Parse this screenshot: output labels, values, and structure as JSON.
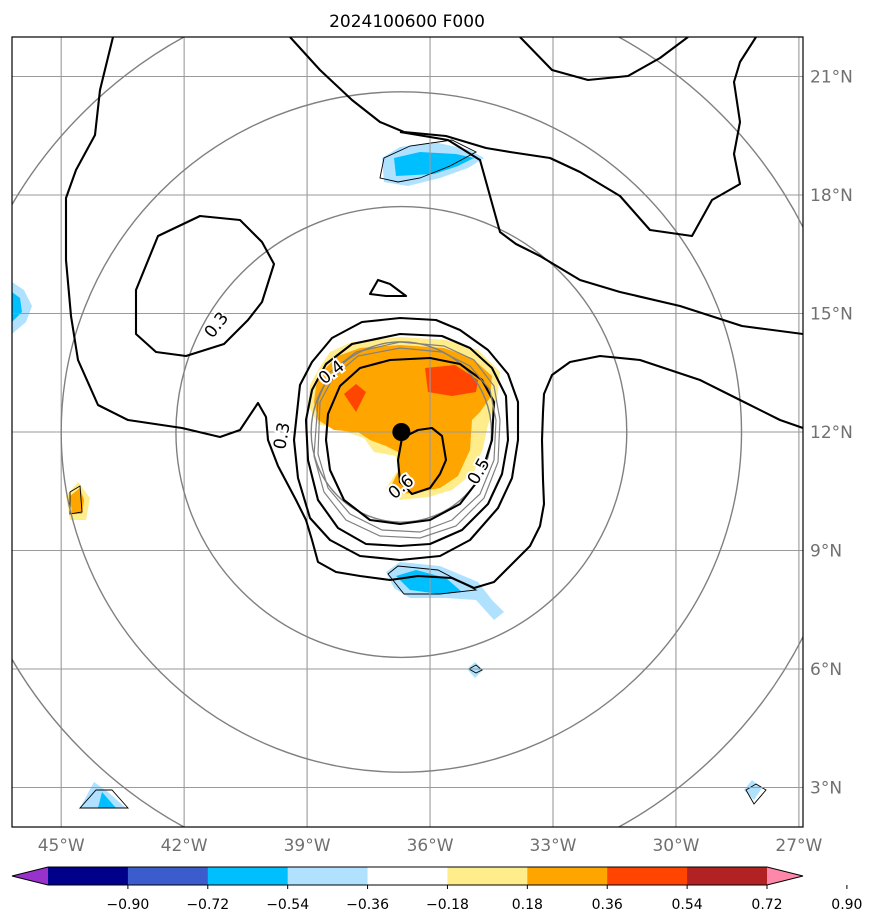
{
  "title": "2024100600 F000",
  "map": {
    "lon_range": [
      -46.2,
      -26.9
    ],
    "lat_range": [
      2.0,
      22.0
    ],
    "lon_ticks": [
      {
        "value": -45,
        "label": "45°W"
      },
      {
        "value": -42,
        "label": "42°W"
      },
      {
        "value": -39,
        "label": "39°W"
      },
      {
        "value": -36,
        "label": "36°W"
      },
      {
        "value": -33,
        "label": "33°W"
      },
      {
        "value": -30,
        "label": "30°W"
      },
      {
        "value": -27,
        "label": "27°W"
      }
    ],
    "lat_ticks": [
      {
        "value": 3,
        "label": "3°N"
      },
      {
        "value": 6,
        "label": "6°N"
      },
      {
        "value": 9,
        "label": "9°N"
      },
      {
        "value": 12,
        "label": "12°N"
      },
      {
        "value": 15,
        "label": "15°N"
      },
      {
        "value": 18,
        "label": "18°N"
      },
      {
        "value": 21,
        "label": "21°N"
      }
    ],
    "storm_center": {
      "lon": -36.7,
      "lat": 12.0
    },
    "range_ring_radii_deg": [
      2.2,
      5.5,
      8.3,
      11.0
    ],
    "contour_labels": [
      {
        "text": "0.3",
        "lon": -41.2,
        "lat": 14.7,
        "angle": -52
      },
      {
        "text": "0.4",
        "lon": -38.4,
        "lat": 13.5,
        "angle": -38
      },
      {
        "text": "0.3",
        "lon": -39.6,
        "lat": 11.9,
        "angle": -80
      },
      {
        "text": "0.6",
        "lon": -36.7,
        "lat": 10.6,
        "angle": -40
      },
      {
        "text": "0.5",
        "lon": -34.8,
        "lat": 11.0,
        "angle": -60
      }
    ]
  },
  "colorbar": {
    "colors": [
      "#9932cc",
      "#00008b",
      "#3a5ccc",
      "#00bfff",
      "#b0e2ff",
      "#ffffff",
      "#ffec8b",
      "#ffa500",
      "#ff4500",
      "#b22222",
      "#ff88aa"
    ],
    "tick_labels": [
      "−0.90",
      "−0.72",
      "−0.54",
      "−0.36",
      "−0.18",
      "0.18",
      "0.36",
      "0.54",
      "0.72",
      "0.90"
    ]
  }
}
